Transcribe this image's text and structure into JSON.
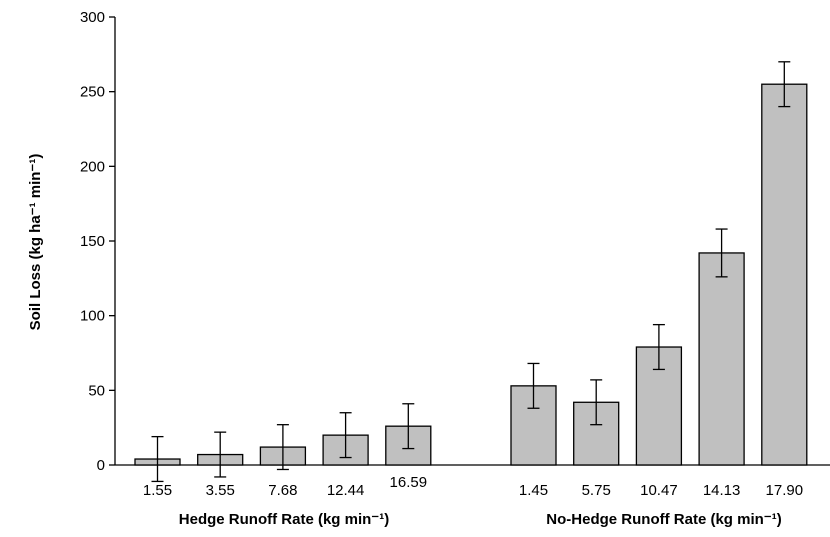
{
  "chart_data": {
    "type": "bar",
    "title": "",
    "ylabel": "Soil Loss (kg ha⁻¹ min⁻¹)",
    "ylim": [
      0,
      300
    ],
    "yticks": [
      0,
      50,
      100,
      150,
      200,
      250,
      300
    ],
    "grid": false,
    "bar_color": "#c0c0c0",
    "groups": [
      {
        "xlabel": "Hedge Runoff Rate (kg min⁻¹)",
        "categories": [
          "1.55",
          "3.55",
          "7.68",
          "12.44",
          "16.59"
        ],
        "values": [
          4,
          7,
          12,
          20,
          26
        ],
        "error": [
          15,
          15,
          15,
          15,
          15
        ]
      },
      {
        "xlabel": "No-Hedge Runoff Rate (kg min⁻¹)",
        "categories": [
          "1.45",
          "5.75",
          "10.47",
          "14.13",
          "17.90"
        ],
        "values": [
          53,
          42,
          79,
          142,
          255
        ],
        "error": [
          15,
          15,
          15,
          16,
          15
        ]
      }
    ]
  }
}
